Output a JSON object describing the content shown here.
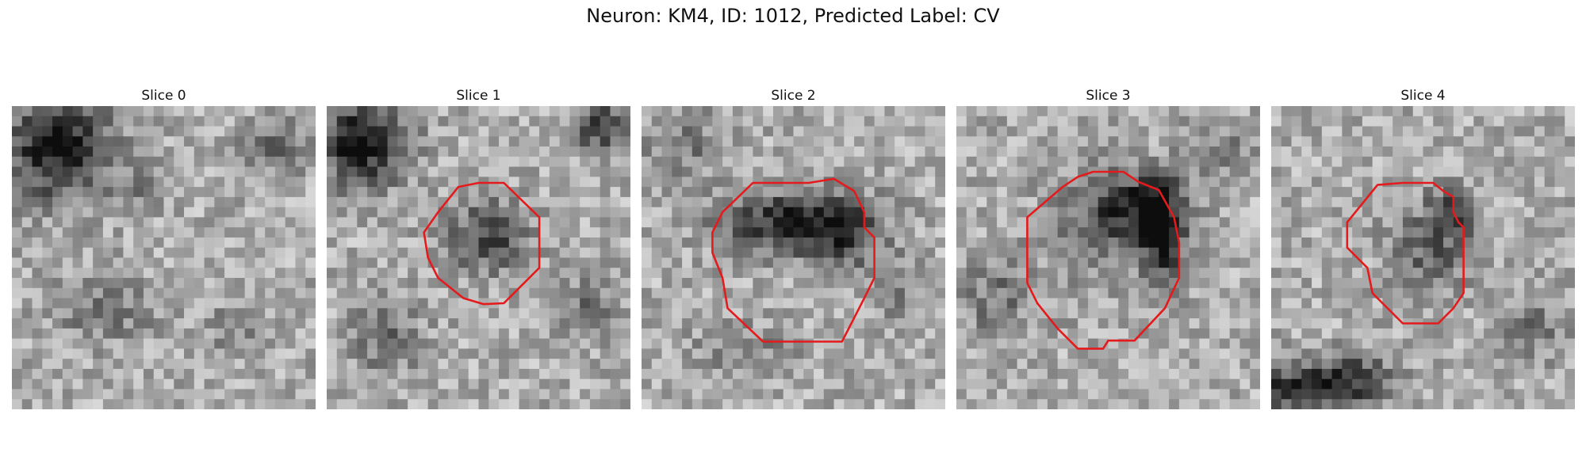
{
  "figure": {
    "title": "Neuron: KM4, ID: 1012, Predicted Label: CV"
  },
  "colors": {
    "contour": "#e41a1c",
    "background": "#ffffff"
  },
  "panels": [
    {
      "title": "Slice 0",
      "has_contour": false
    },
    {
      "title": "Slice 1",
      "has_contour": true
    },
    {
      "title": "Slice 2",
      "has_contour": true
    },
    {
      "title": "Slice 3",
      "has_contour": true
    },
    {
      "title": "Slice 4",
      "has_contour": true
    }
  ]
}
